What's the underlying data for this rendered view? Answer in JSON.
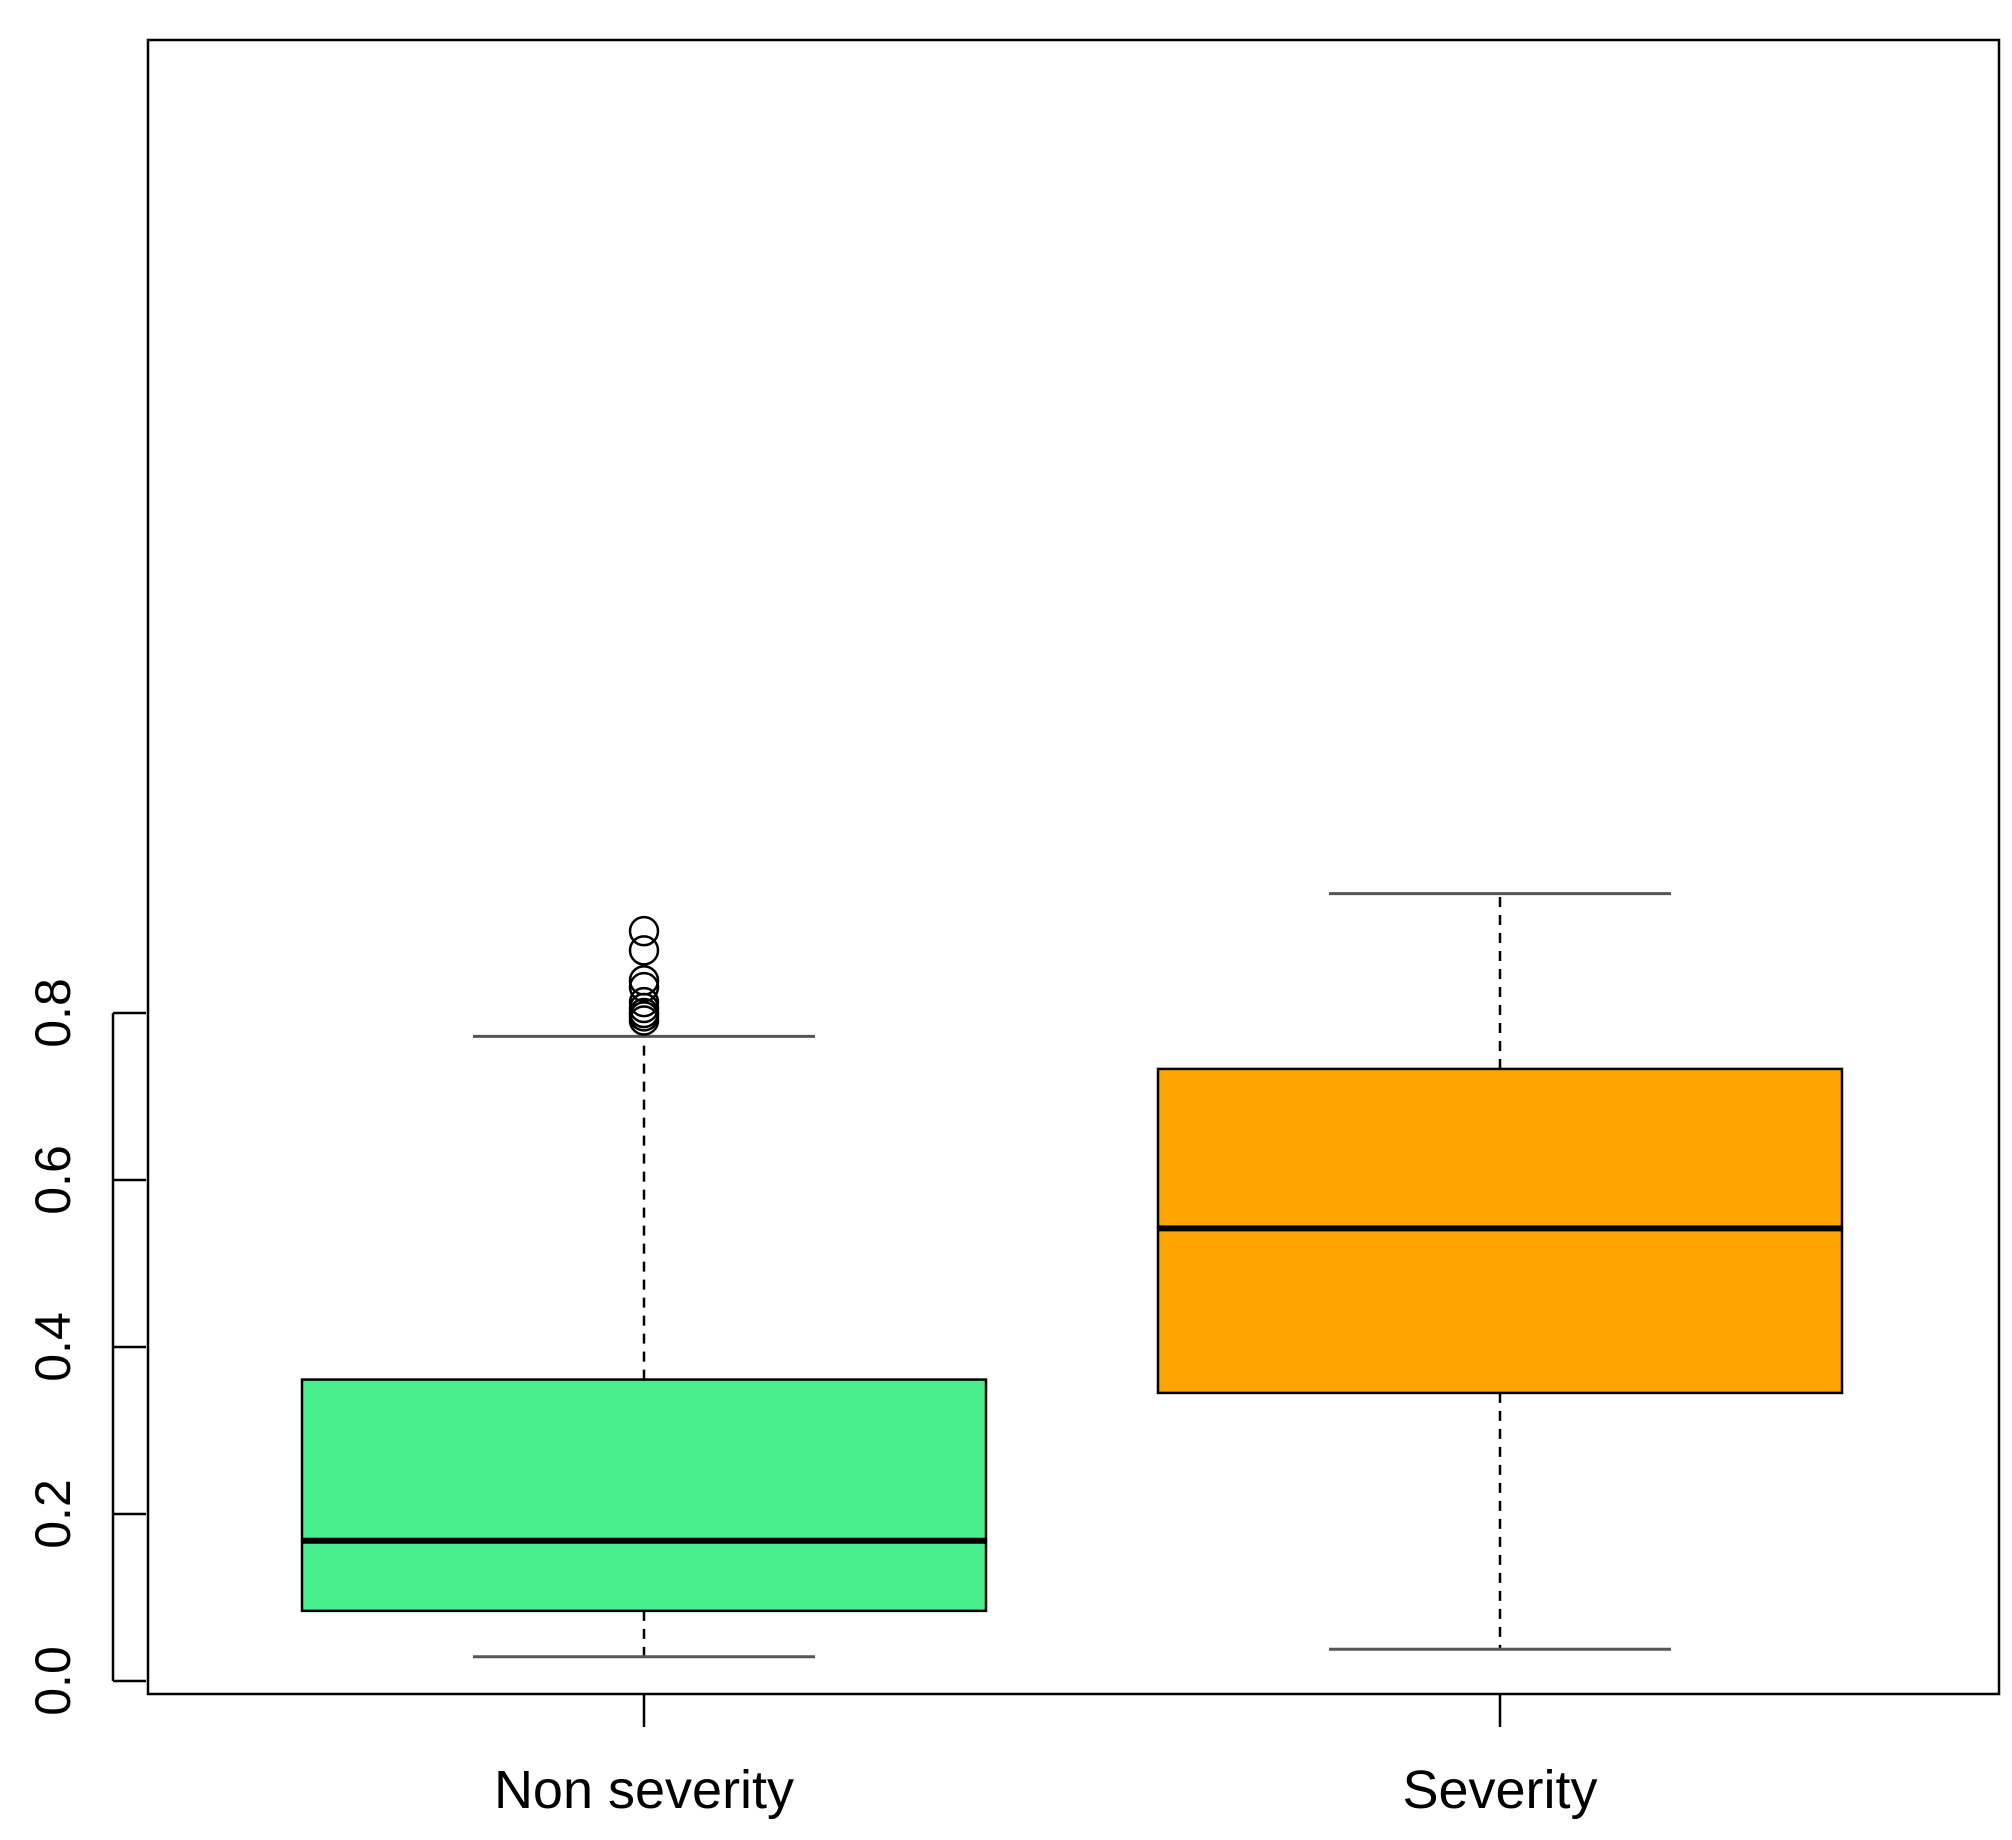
{
  "chart_data": {
    "type": "box",
    "title": "",
    "xlabel": "",
    "ylabel": "",
    "ylim": [
      0.0,
      0.92
    ],
    "yticks": [
      0.0,
      0.2,
      0.4,
      0.6,
      0.8
    ],
    "ytick_labels": [
      "0.0",
      "0.2",
      "0.4",
      "0.6",
      "0.8"
    ],
    "grid": false,
    "legend": "none",
    "categories": [
      "Non severity",
      "Severity"
    ],
    "boxes": [
      {
        "category": "Non severity",
        "color": "#48ee8c",
        "whisker_low": 0.029,
        "q1": 0.084,
        "median": 0.168,
        "q3": 0.361,
        "whisker_high": 0.772,
        "outliers": [
          0.791,
          0.796,
          0.8,
          0.806,
          0.813,
          0.831,
          0.839,
          0.875,
          0.898
        ]
      },
      {
        "category": "Severity",
        "color": "#ffa500",
        "whisker_low": 0.038,
        "q1": 0.345,
        "median": 0.542,
        "q3": 0.733,
        "whisker_high": 0.943,
        "outliers": []
      }
    ]
  }
}
